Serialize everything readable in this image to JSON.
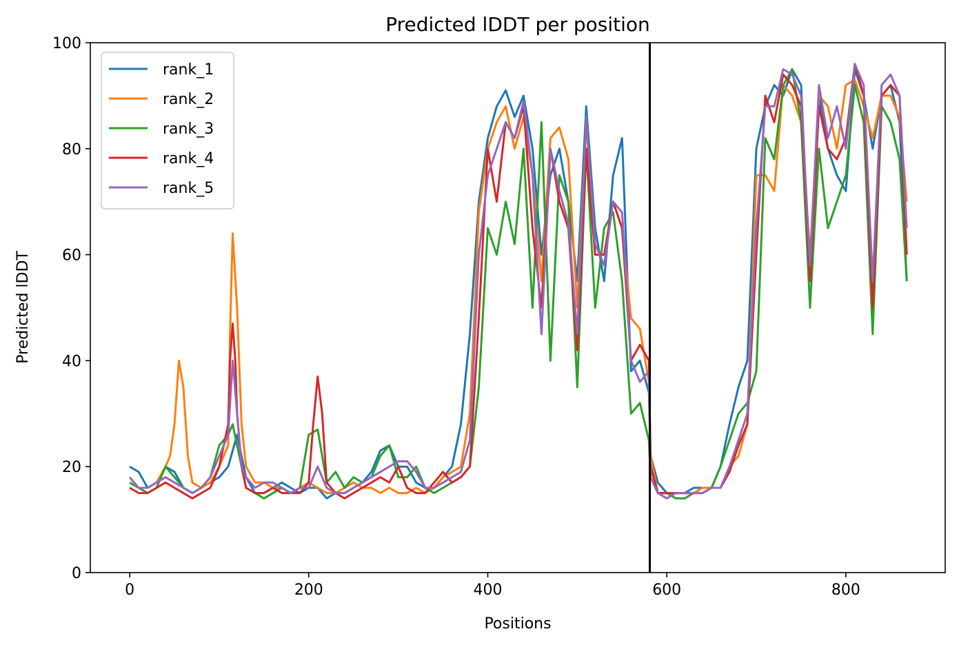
{
  "chart_data": {
    "type": "line",
    "title": "Predicted lDDT per position",
    "xlabel": "Positions",
    "ylabel": "Predicted lDDT",
    "xlim": [
      -44,
      911
    ],
    "ylim": [
      0,
      100
    ],
    "xticks": [
      0,
      200,
      400,
      600,
      800
    ],
    "yticks": [
      0,
      20,
      40,
      60,
      80,
      100
    ],
    "grid": false,
    "legend_position": "top-left",
    "vline": {
      "x": 581,
      "color": "#000000"
    },
    "series": [
      {
        "name": "rank_1",
        "color": "#1f77b4",
        "x": [
          0,
          10,
          20,
          30,
          40,
          50,
          60,
          70,
          80,
          90,
          100,
          110,
          120,
          130,
          140,
          150,
          160,
          170,
          180,
          190,
          200,
          210,
          220,
          230,
          240,
          250,
          260,
          270,
          280,
          290,
          300,
          310,
          320,
          330,
          340,
          350,
          360,
          370,
          380,
          390,
          400,
          410,
          420,
          430,
          440,
          450,
          460,
          470,
          480,
          490,
          500,
          510,
          520,
          530,
          540,
          550,
          560,
          570,
          580,
          582,
          590,
          600,
          610,
          620,
          630,
          640,
          650,
          660,
          670,
          680,
          690,
          700,
          710,
          720,
          730,
          740,
          750,
          760,
          770,
          780,
          790,
          800,
          810,
          820,
          830,
          840,
          850,
          860,
          868
        ],
        "y": [
          20,
          19,
          16,
          17,
          20,
          19,
          16,
          15,
          16,
          17,
          18,
          20,
          26,
          18,
          15,
          15,
          16,
          17,
          16,
          15,
          16,
          16,
          14,
          15,
          15,
          16,
          17,
          19,
          23,
          24,
          20,
          20,
          17,
          16,
          16,
          18,
          20,
          28,
          45,
          70,
          82,
          88,
          91,
          86,
          90,
          80,
          60,
          75,
          80,
          70,
          55,
          88,
          65,
          55,
          75,
          82,
          38,
          40,
          34,
          22,
          17,
          15,
          15,
          15,
          16,
          16,
          16,
          20,
          28,
          35,
          40,
          80,
          88,
          92,
          90,
          95,
          92,
          55,
          90,
          80,
          75,
          72,
          95,
          90,
          80,
          90,
          92,
          85,
          55
        ]
      },
      {
        "name": "rank_2",
        "color": "#ff7f0e",
        "x": [
          0,
          10,
          20,
          30,
          40,
          45,
          50,
          55,
          60,
          65,
          70,
          80,
          90,
          100,
          110,
          112,
          115,
          120,
          125,
          130,
          140,
          150,
          160,
          170,
          180,
          190,
          200,
          210,
          220,
          230,
          240,
          250,
          260,
          270,
          280,
          290,
          300,
          310,
          320,
          330,
          340,
          350,
          360,
          370,
          380,
          390,
          400,
          410,
          420,
          430,
          440,
          450,
          460,
          470,
          480,
          490,
          500,
          510,
          520,
          530,
          540,
          550,
          560,
          570,
          580,
          582,
          590,
          600,
          610,
          620,
          630,
          640,
          650,
          660,
          670,
          680,
          690,
          700,
          710,
          720,
          730,
          740,
          750,
          760,
          770,
          780,
          790,
          800,
          810,
          820,
          830,
          840,
          850,
          860,
          868
        ],
        "y": [
          17,
          16,
          16,
          17,
          20,
          22,
          28,
          40,
          35,
          22,
          17,
          16,
          17,
          20,
          24,
          45,
          64,
          50,
          28,
          20,
          17,
          17,
          16,
          16,
          15,
          16,
          17,
          16,
          15,
          15,
          16,
          17,
          16,
          16,
          15,
          16,
          15,
          15,
          16,
          15,
          16,
          18,
          19,
          20,
          30,
          68,
          80,
          85,
          88,
          80,
          86,
          75,
          55,
          82,
          84,
          78,
          50,
          85,
          60,
          60,
          70,
          65,
          48,
          46,
          36,
          22,
          15,
          15,
          15,
          15,
          15,
          16,
          16,
          16,
          20,
          22,
          28,
          75,
          75,
          72,
          92,
          90,
          85,
          60,
          90,
          88,
          80,
          92,
          93,
          88,
          82,
          90,
          90,
          86,
          70
        ]
      },
      {
        "name": "rank_3",
        "color": "#2ca02c",
        "x": [
          0,
          10,
          20,
          30,
          40,
          50,
          60,
          70,
          80,
          90,
          100,
          110,
          115,
          120,
          130,
          140,
          150,
          160,
          170,
          180,
          190,
          200,
          210,
          220,
          230,
          240,
          250,
          260,
          270,
          280,
          290,
          300,
          310,
          320,
          330,
          340,
          350,
          360,
          370,
          380,
          390,
          400,
          410,
          420,
          430,
          440,
          450,
          460,
          470,
          480,
          490,
          500,
          510,
          520,
          530,
          540,
          550,
          560,
          570,
          580,
          582,
          590,
          600,
          610,
          620,
          630,
          640,
          650,
          660,
          670,
          680,
          690,
          700,
          710,
          720,
          730,
          740,
          750,
          760,
          770,
          780,
          790,
          800,
          810,
          820,
          830,
          840,
          850,
          860,
          868
        ],
        "y": [
          17,
          16,
          15,
          16,
          20,
          18,
          16,
          15,
          16,
          18,
          24,
          26,
          28,
          24,
          16,
          15,
          14,
          15,
          16,
          15,
          16,
          26,
          27,
          17,
          19,
          16,
          18,
          17,
          18,
          22,
          24,
          18,
          18,
          20,
          16,
          15,
          16,
          17,
          18,
          20,
          35,
          65,
          60,
          70,
          62,
          80,
          50,
          85,
          40,
          75,
          70,
          35,
          80,
          50,
          65,
          68,
          55,
          30,
          32,
          25,
          18,
          15,
          15,
          14,
          14,
          15,
          15,
          16,
          20,
          25,
          30,
          32,
          38,
          82,
          78,
          92,
          95,
          85,
          50,
          80,
          65,
          70,
          75,
          92,
          85,
          45,
          88,
          85,
          78,
          55
        ]
      },
      {
        "name": "rank_4",
        "color": "#d62728",
        "x": [
          0,
          10,
          20,
          30,
          40,
          50,
          60,
          70,
          80,
          90,
          100,
          110,
          112,
          115,
          118,
          120,
          125,
          130,
          140,
          150,
          160,
          170,
          180,
          190,
          200,
          205,
          210,
          215,
          220,
          230,
          240,
          250,
          260,
          270,
          280,
          290,
          300,
          310,
          320,
          330,
          340,
          350,
          360,
          370,
          380,
          390,
          400,
          410,
          420,
          430,
          440,
          450,
          460,
          470,
          480,
          490,
          500,
          510,
          520,
          530,
          540,
          550,
          560,
          570,
          580,
          582,
          590,
          600,
          610,
          620,
          630,
          640,
          650,
          660,
          670,
          680,
          690,
          700,
          710,
          720,
          730,
          740,
          750,
          760,
          770,
          780,
          790,
          800,
          810,
          820,
          830,
          840,
          850,
          860,
          868
        ],
        "y": [
          16,
          15,
          15,
          16,
          17,
          16,
          15,
          14,
          15,
          16,
          20,
          28,
          40,
          47,
          40,
          30,
          20,
          16,
          15,
          15,
          16,
          15,
          15,
          15,
          17,
          28,
          37,
          30,
          17,
          15,
          14,
          15,
          16,
          17,
          18,
          17,
          20,
          16,
          15,
          15,
          17,
          19,
          17,
          18,
          20,
          48,
          80,
          70,
          85,
          82,
          88,
          65,
          50,
          80,
          70,
          65,
          42,
          80,
          60,
          60,
          70,
          65,
          40,
          43,
          40,
          20,
          15,
          15,
          15,
          15,
          15,
          15,
          16,
          16,
          19,
          24,
          28,
          60,
          90,
          85,
          94,
          92,
          88,
          55,
          88,
          80,
          78,
          82,
          96,
          90,
          50,
          90,
          92,
          90,
          60
        ]
      },
      {
        "name": "rank_5",
        "color": "#9467bd",
        "x": [
          0,
          10,
          20,
          30,
          40,
          50,
          60,
          70,
          80,
          90,
          100,
          110,
          115,
          120,
          125,
          130,
          140,
          150,
          160,
          170,
          180,
          190,
          200,
          210,
          220,
          230,
          240,
          250,
          260,
          270,
          280,
          290,
          300,
          310,
          320,
          330,
          340,
          350,
          360,
          370,
          380,
          390,
          400,
          410,
          420,
          430,
          440,
          450,
          460,
          470,
          480,
          490,
          500,
          510,
          520,
          530,
          540,
          550,
          560,
          570,
          580,
          582,
          590,
          600,
          610,
          620,
          630,
          640,
          650,
          660,
          670,
          680,
          690,
          700,
          710,
          720,
          730,
          740,
          750,
          760,
          770,
          780,
          790,
          800,
          810,
          820,
          830,
          840,
          850,
          860,
          868
        ],
        "y": [
          18,
          16,
          16,
          17,
          18,
          17,
          16,
          15,
          16,
          18,
          22,
          26,
          40,
          30,
          20,
          18,
          16,
          17,
          17,
          16,
          15,
          16,
          16,
          20,
          16,
          15,
          15,
          16,
          17,
          18,
          19,
          20,
          21,
          21,
          19,
          16,
          16,
          17,
          18,
          19,
          25,
          60,
          75,
          80,
          85,
          82,
          89,
          75,
          45,
          80,
          72,
          66,
          45,
          86,
          62,
          58,
          70,
          68,
          40,
          36,
          38,
          18,
          15,
          14,
          15,
          15,
          15,
          15,
          16,
          16,
          20,
          25,
          30,
          65,
          88,
          88,
          95,
          94,
          90,
          58,
          92,
          82,
          88,
          80,
          96,
          92,
          55,
          92,
          94,
          90,
          65
        ]
      }
    ]
  }
}
